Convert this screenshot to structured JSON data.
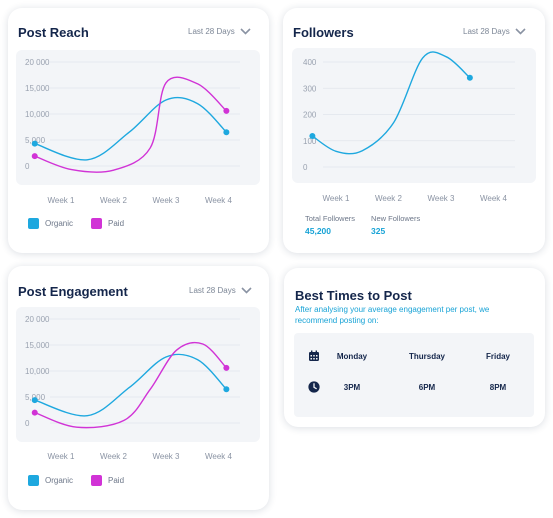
{
  "post_reach": {
    "title": "Post Reach",
    "period": "Last 28 Days",
    "legend": [
      {
        "label": "Organic",
        "color": "#1ea8df"
      },
      {
        "label": "Paid",
        "color": "#d133d6"
      }
    ]
  },
  "followers": {
    "title": "Followers",
    "period": "Last 28 Days",
    "stats": [
      {
        "label": "Total Followers",
        "value": "45,200"
      },
      {
        "label": "New Followers",
        "value": "325"
      }
    ]
  },
  "post_engagement": {
    "title": "Post Engagement",
    "period": "Last 28 Days",
    "legend": [
      {
        "label": "Organic",
        "color": "#1ea8df"
      },
      {
        "label": "Paid",
        "color": "#d133d6"
      }
    ]
  },
  "best_times": {
    "title": "Best Times to Post",
    "subtitle_line1": "After analysing your average engagement per post, we",
    "subtitle_line2": "recommend posting on:",
    "days": [
      "Monday",
      "Thursday",
      "Friday"
    ],
    "times": [
      "3PM",
      "6PM",
      "8PM"
    ],
    "icons": [
      "calendar-icon",
      "clock-icon"
    ]
  },
  "chart_data": [
    {
      "type": "line",
      "categories": [
        "Week 1",
        "Week 2",
        "Week 3",
        "Week 4"
      ],
      "y_ticks": [
        "0",
        "5,000",
        "10,000",
        "15,000",
        "20 000"
      ],
      "ylim": [
        0,
        20000
      ],
      "grid": true,
      "legend_position": "bottom-left",
      "series": [
        {
          "name": "Organic",
          "color": "#1ea8df",
          "points": [
            [
              0.5,
              4300
            ],
            [
              1.5,
              1200
            ],
            [
              2.3,
              6500
            ],
            [
              3.0,
              12700
            ],
            [
              3.6,
              12000
            ],
            [
              4.15,
              6500
            ]
          ]
        },
        {
          "name": "Paid",
          "color": "#d133d6",
          "points": [
            [
              0.5,
              1900
            ],
            [
              1.2,
              -700
            ],
            [
              2.0,
              -800
            ],
            [
              2.7,
              3500
            ],
            [
              3.0,
              16000
            ],
            [
              3.6,
              15800
            ],
            [
              4.15,
              10600
            ]
          ]
        }
      ]
    },
    {
      "type": "line",
      "categories": [
        "Week 1",
        "Week 2",
        "Week 3",
        "Week 4"
      ],
      "y_ticks": [
        "0",
        "100",
        "200",
        "300",
        "400"
      ],
      "ylim": [
        0,
        400
      ],
      "grid": true,
      "series": [
        {
          "name": "Followers",
          "color": "#1ea8df",
          "points": [
            [
              0.55,
              118
            ],
            [
              1.0,
              60
            ],
            [
              1.5,
              62
            ],
            [
              2.1,
              170
            ],
            [
              2.65,
              415
            ],
            [
              3.1,
              420
            ],
            [
              3.55,
              340
            ]
          ]
        }
      ]
    },
    {
      "type": "line",
      "categories": [
        "Week 1",
        "Week 2",
        "Week 3",
        "Week 4"
      ],
      "y_ticks": [
        "0",
        "5,000",
        "10,000",
        "15,000",
        "20 000"
      ],
      "ylim": [
        0,
        20000
      ],
      "grid": true,
      "legend_position": "bottom-left",
      "series": [
        {
          "name": "Organic",
          "color": "#1ea8df",
          "points": [
            [
              0.5,
              4400
            ],
            [
              1.5,
              1400
            ],
            [
              2.3,
              6800
            ],
            [
              3.0,
              12700
            ],
            [
              3.6,
              12200
            ],
            [
              4.15,
              6500
            ]
          ]
        },
        {
          "name": "Paid",
          "color": "#d133d6",
          "points": [
            [
              0.5,
              2000
            ],
            [
              1.3,
              -800
            ],
            [
              2.2,
              500
            ],
            [
              2.7,
              6500
            ],
            [
              3.2,
              14000
            ],
            [
              3.7,
              15200
            ],
            [
              4.15,
              10600
            ]
          ]
        }
      ]
    }
  ]
}
